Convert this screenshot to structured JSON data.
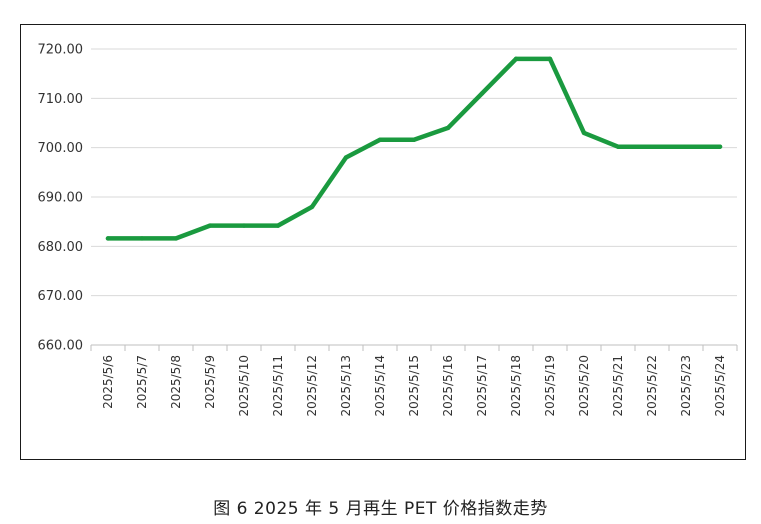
{
  "caption": "图 6  2025 年 5 月再生 PET 价格指数走势",
  "chart_data": {
    "type": "line",
    "title": "",
    "xlabel": "",
    "ylabel": "",
    "ylim": [
      660,
      720
    ],
    "y_ticks": [
      "660.00",
      "670.00",
      "680.00",
      "690.00",
      "700.00",
      "710.00",
      "720.00"
    ],
    "grid": "horizontal",
    "series_color": "#1a9a3f",
    "categories": [
      "2025/5/6",
      "2025/5/7",
      "2025/5/8",
      "2025/5/9",
      "2025/5/10",
      "2025/5/11",
      "2025/5/12",
      "2025/5/13",
      "2025/5/14",
      "2025/5/15",
      "2025/5/16",
      "2025/5/17",
      "2025/5/18",
      "2025/5/19",
      "2025/5/20",
      "2025/5/21",
      "2025/5/22",
      "2025/5/23",
      "2025/5/24"
    ],
    "series": [
      {
        "values": [
          681.6,
          681.6,
          681.6,
          684.2,
          684.2,
          684.2,
          688.0,
          698.0,
          701.6,
          701.6,
          704.0,
          711.0,
          718.0,
          718.0,
          703.0,
          700.2,
          700.2,
          700.2,
          700.2
        ]
      }
    ]
  }
}
